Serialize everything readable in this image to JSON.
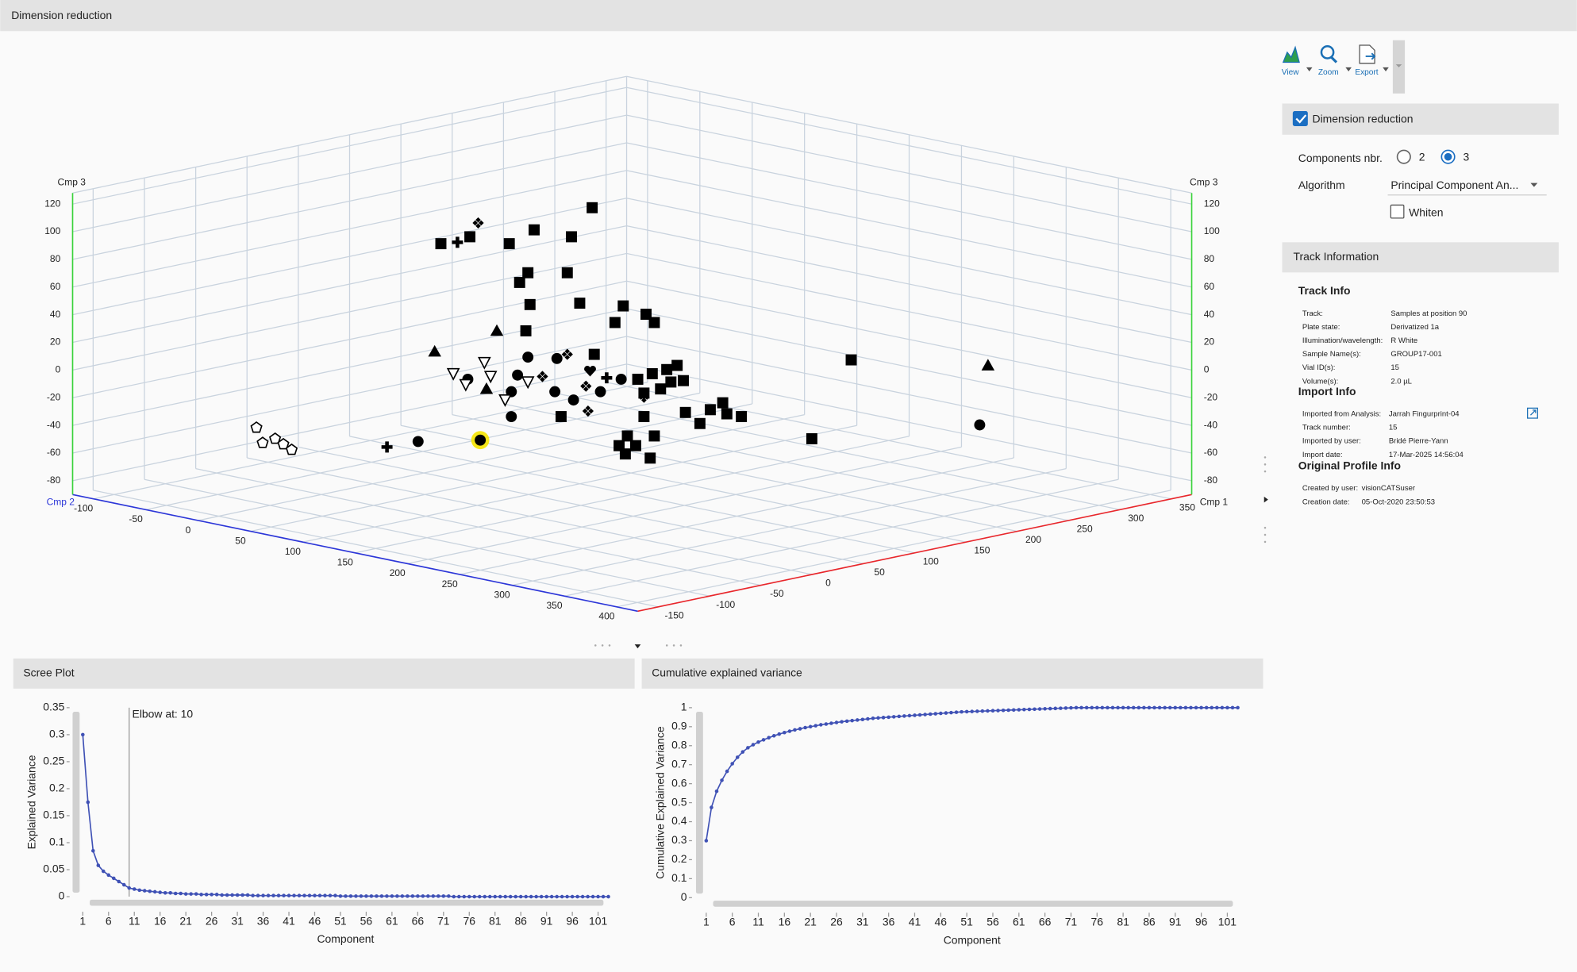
{
  "header": {
    "title": "Dimension reduction"
  },
  "toolbar": [
    "View",
    "Zoom",
    "Export"
  ],
  "chart_data": [
    {
      "type": "scatter3d",
      "x_label": "Cmp 1",
      "y_label": "Cmp 2",
      "z_label": "Cmp 3",
      "xlim": [
        -170,
        370
      ],
      "ylim": [
        -120,
        420
      ],
      "zlim": [
        -90,
        128
      ],
      "xticks": [
        -150,
        -100,
        -50,
        0,
        50,
        100,
        150,
        200,
        250,
        300,
        350
      ],
      "yticks": [
        -100,
        -50,
        0,
        50,
        100,
        150,
        200,
        250,
        300,
        350,
        400
      ],
      "zticks": [
        -80,
        -60,
        -40,
        -20,
        0,
        20,
        40,
        60,
        80,
        100,
        120
      ],
      "grid": true,
      "grid_color": "#c9d3de",
      "axis_colors": {
        "x": "#e8262b",
        "y": "#2b35d8",
        "z": "#39d23a"
      },
      "series": [
        {
          "marker": "square",
          "color": "#000000",
          "x": [
            38,
            52,
            71,
            83,
            111,
            101,
            80,
            76,
            99,
            81,
            105,
            79,
            126,
            122,
            137,
            141,
            112,
            140,
            147,
            152,
            155,
            149,
            144,
            133,
            136,
            236,
            136,
            156,
            168,
            174,
            176,
            183,
            163,
            96,
            128,
            124,
            132,
            127,
            139,
            141,
            217
          ],
          "y": [
            28,
            42,
            61,
            73,
            101,
            91,
            70,
            66,
            89,
            71,
            95,
            69,
            116,
            112,
            127,
            131,
            102,
            130,
            137,
            142,
            145,
            139,
            134,
            123,
            126,
            226,
            126,
            146,
            158,
            164,
            166,
            173,
            153,
            86,
            118,
            114,
            122,
            117,
            129,
            131,
            207
          ],
          "z": [
            82,
            87,
            82,
            92,
            108,
            87,
            61,
            54,
            61,
            38,
            39,
            19,
            37,
            25,
            31,
            25,
            2,
            -12,
            -9,
            -6,
            -17,
            -18,
            -23,
            -16,
            -26,
            -2,
            -43,
            -40,
            -38,
            -33,
            -41,
            -43,
            -48,
            -43,
            -57,
            -64,
            -64,
            -70,
            -73,
            -57,
            -59
          ]
        },
        {
          "marker": "circle",
          "color": "#000000",
          "x": [
            80,
            94,
            93,
            102,
            115,
            75,
            72,
            27,
            298,
            51,
            72,
            125
          ],
          "y": [
            70,
            84,
            83,
            92,
            105,
            65,
            62,
            17,
            288,
            41,
            62,
            115
          ],
          "z": [
            0,
            -1,
            -25,
            -31,
            -25,
            -13,
            -43,
            -61,
            -49,
            -16,
            -25,
            -16
          ]
        },
        {
          "marker": "circle",
          "color": "#000000",
          "highlight": "#f5e400",
          "x": [
            57
          ],
          "y": [
            47
          ],
          "z": [
            -60
          ]
        },
        {
          "marker": "plus",
          "color": "#000000",
          "x": [
            46,
            12,
            118
          ],
          "y": [
            36,
            2,
            108
          ],
          "z": [
            83,
            -65,
            -15
          ]
        },
        {
          "marker": "triangle",
          "color": "#000000",
          "x": [
            65,
            35,
            302,
            60
          ],
          "y": [
            55,
            25,
            292,
            50
          ],
          "z": [
            19,
            4,
            -6,
            -23
          ]
        },
        {
          "marker": "diamond-cluster",
          "color": "#000000",
          "x": [
            56,
            99,
            87,
            108,
            109,
            136
          ],
          "y": [
            46,
            89,
            77,
            98,
            99,
            126
          ],
          "z": [
            97,
            2,
            -14,
            -21,
            -39,
            -29
          ]
        },
        {
          "marker": "triangle-down-open",
          "color": "#000000",
          "x": [
            44,
            59,
            62,
            50,
            69,
            80
          ],
          "y": [
            34,
            49,
            52,
            40,
            59,
            70
          ],
          "z": [
            -12,
            -4,
            -14,
            -20,
            -31,
            -18
          ]
        },
        {
          "marker": "pentagon-open",
          "color": "#000000",
          "x": [
            -51,
            -48,
            -42,
            -38,
            -34
          ],
          "y": [
            -61,
            -58,
            -52,
            -48,
            -44
          ],
          "z": [
            -51,
            -62,
            -59,
            -63,
            -67
          ]
        },
        {
          "marker": "heart",
          "color": "#000000",
          "x": [
            110
          ],
          "y": [
            100
          ],
          "z": [
            -10
          ]
        }
      ]
    },
    {
      "type": "line",
      "title": "Scree Plot",
      "x_label": "Component",
      "y_label": "Explained Variance",
      "x": [
        1,
        2,
        3,
        4,
        5,
        6,
        7,
        8,
        9,
        10,
        11,
        12,
        13,
        14,
        15,
        16,
        17,
        18,
        19,
        20,
        21,
        22,
        23,
        24,
        25,
        26,
        27,
        28,
        29,
        30,
        31,
        32,
        33,
        34,
        35,
        36,
        37,
        38,
        39,
        40,
        41,
        42,
        43,
        44,
        45,
        46,
        47,
        48,
        49,
        50,
        51,
        52,
        53,
        54,
        55,
        56,
        57,
        58,
        59,
        60,
        61,
        62,
        63,
        64,
        65,
        66,
        67,
        68,
        69,
        70,
        71,
        72,
        73,
        74,
        75,
        76,
        77,
        78,
        79,
        80,
        81,
        82,
        83,
        84,
        85,
        86,
        87,
        88,
        89,
        90,
        91,
        92,
        93,
        94,
        95,
        96,
        97,
        98,
        99,
        100,
        101,
        102,
        103
      ],
      "xlim": [
        0,
        104
      ],
      "xticks": [
        1,
        6,
        11,
        16,
        21,
        26,
        31,
        36,
        41,
        46,
        51,
        56,
        61,
        66,
        71,
        76,
        81,
        86,
        91,
        96,
        101
      ],
      "ylim": [
        0,
        0.35
      ],
      "yticks": [
        0,
        0.05,
        0.1,
        0.15,
        0.2,
        0.25,
        0.3,
        0.35
      ],
      "series": [
        {
          "color": "#3f51b5",
          "values": [
            0.3,
            0.175,
            0.085,
            0.058,
            0.047,
            0.04,
            0.034,
            0.028,
            0.022,
            0.016,
            0.014,
            0.012,
            0.011,
            0.01,
            0.009,
            0.008,
            0.007,
            0.007,
            0.006,
            0.006,
            0.005,
            0.005,
            0.005,
            0.004,
            0.004,
            0.004,
            0.004,
            0.003,
            0.003,
            0.003,
            0.003,
            0.003,
            0.003,
            0.002,
            0.002,
            0.002,
            0.002,
            0.002,
            0.002,
            0.002,
            0.002,
            0.002,
            0.002,
            0.002,
            0.002,
            0.002,
            0.002,
            0.002,
            0.002,
            0.002,
            0.001,
            0.001,
            0.001,
            0.001,
            0.001,
            0.001,
            0.001,
            0.001,
            0.001,
            0.001,
            0.001,
            0.001,
            0.001,
            0.001,
            0.001,
            0.001,
            0.001,
            0.001,
            0.001,
            0.001,
            0.001,
            0.001,
            0,
            0,
            0,
            0,
            0,
            0,
            0,
            0,
            0,
            0,
            0,
            0,
            0,
            0,
            0,
            0,
            0,
            0,
            0,
            0,
            0,
            0,
            0,
            0,
            0,
            0,
            0,
            0,
            0,
            0,
            0
          ]
        }
      ],
      "annotations": [
        {
          "text": "Elbow at: 10",
          "x": 10
        }
      ]
    },
    {
      "type": "line",
      "title": "Cumulative explained variance",
      "x_label": "Component",
      "y_label": "Cumulative Explained Variance",
      "x": [
        1,
        2,
        3,
        4,
        5,
        6,
        7,
        8,
        9,
        10,
        11,
        12,
        13,
        14,
        15,
        16,
        17,
        18,
        19,
        20,
        21,
        22,
        23,
        24,
        25,
        26,
        27,
        28,
        29,
        30,
        31,
        32,
        33,
        34,
        35,
        36,
        37,
        38,
        39,
        40,
        41,
        42,
        43,
        44,
        45,
        46,
        47,
        48,
        49,
        50,
        51,
        52,
        53,
        54,
        55,
        56,
        57,
        58,
        59,
        60,
        61,
        62,
        63,
        64,
        65,
        66,
        67,
        68,
        69,
        70,
        71,
        72,
        73,
        74,
        75,
        76,
        77,
        78,
        79,
        80,
        81,
        82,
        83,
        84,
        85,
        86,
        87,
        88,
        89,
        90,
        91,
        92,
        93,
        94,
        95,
        96,
        97,
        98,
        99,
        100,
        101,
        102,
        103
      ],
      "xlim": [
        0,
        104
      ],
      "xticks": [
        1,
        6,
        11,
        16,
        21,
        26,
        31,
        36,
        41,
        46,
        51,
        56,
        61,
        66,
        71,
        76,
        81,
        86,
        91,
        96,
        101
      ],
      "ylim": [
        0,
        1
      ],
      "yticks": [
        0,
        0.1,
        0.2,
        0.3,
        0.4,
        0.5,
        0.6,
        0.7,
        0.8,
        0.9,
        1
      ],
      "series": [
        {
          "color": "#3f51b5",
          "values": [
            0.3,
            0.475,
            0.56,
            0.618,
            0.665,
            0.705,
            0.739,
            0.767,
            0.789,
            0.805,
            0.819,
            0.831,
            0.842,
            0.852,
            0.861,
            0.869,
            0.876,
            0.883,
            0.889,
            0.895,
            0.9,
            0.905,
            0.91,
            0.914,
            0.918,
            0.922,
            0.926,
            0.929,
            0.932,
            0.935,
            0.938,
            0.941,
            0.944,
            0.946,
            0.948,
            0.95,
            0.952,
            0.954,
            0.956,
            0.958,
            0.96,
            0.962,
            0.964,
            0.966,
            0.968,
            0.97,
            0.972,
            0.974,
            0.976,
            0.978,
            0.979,
            0.98,
            0.981,
            0.982,
            0.983,
            0.984,
            0.985,
            0.986,
            0.987,
            0.988,
            0.989,
            0.99,
            0.991,
            0.992,
            0.993,
            0.994,
            0.995,
            0.996,
            0.997,
            0.998,
            0.999,
            1,
            1,
            1,
            1,
            1,
            1,
            1,
            1,
            1,
            1,
            1,
            1,
            1,
            1,
            1,
            1,
            1,
            1,
            1,
            1,
            1,
            1,
            1,
            1,
            1,
            1,
            1,
            1,
            1,
            1,
            1,
            1
          ]
        }
      ]
    }
  ],
  "settings": {
    "title": "Dimension reduction",
    "enabled": true,
    "components_label": "Components nbr.",
    "components_options": [
      2,
      3
    ],
    "components_selected": 3,
    "algorithm_label": "Algorithm",
    "algorithm": "Principal Component An...",
    "whiten_label": "Whiten",
    "whiten": false
  },
  "track": {
    "title": "Track Information",
    "sections": [
      {
        "heading": "Track Info",
        "rows": [
          [
            "Track:",
            "Samples at position 90"
          ],
          [
            "Plate state:",
            "Derivatized 1a"
          ],
          [
            "Illumination/wavelength:",
            "R White"
          ],
          [
            "Sample Name(s):",
            "GROUP17-001"
          ],
          [
            "Vial ID(s):",
            "15"
          ],
          [
            "Volume(s):",
            "2.0 µL"
          ]
        ]
      },
      {
        "heading": "Import Info",
        "rows": [
          [
            "Imported from Analysis:",
            "Jarrah Fingurprint-04"
          ],
          [
            "Track number:",
            "15"
          ],
          [
            "Imported by user:",
            "Bridé Pierre-Yann"
          ],
          [
            "Import date:",
            "17-Mar-2025 14:56:04"
          ]
        ]
      },
      {
        "heading": "Original Profile Info",
        "rows": [
          [
            "Created by user:",
            "visionCATSuser"
          ],
          [
            "Creation date:",
            "05-Oct-2020 23:50:53"
          ]
        ]
      }
    ]
  }
}
